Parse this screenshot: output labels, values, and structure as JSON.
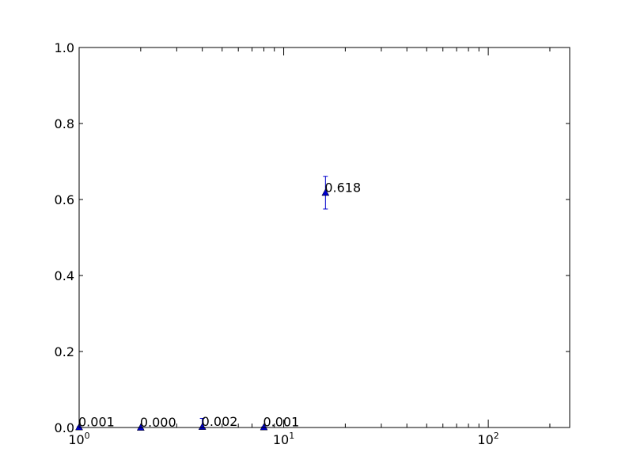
{
  "chart_data": {
    "type": "scatter",
    "title": "",
    "xlabel": "",
    "ylabel": "",
    "xscale": "log",
    "xlim": [
      1,
      250
    ],
    "ylim": [
      0,
      1.0
    ],
    "grid": false,
    "marker": "triangle-up",
    "color": "#0000cc",
    "x_ticks": [
      {
        "value": 1,
        "base": "10",
        "exp": "0"
      },
      {
        "value": 10,
        "base": "10",
        "exp": "1"
      },
      {
        "value": 100,
        "base": "10",
        "exp": "2"
      }
    ],
    "y_ticks": [
      {
        "value": 0.0,
        "label": "0.0"
      },
      {
        "value": 0.2,
        "label": "0.2"
      },
      {
        "value": 0.4,
        "label": "0.4"
      },
      {
        "value": 0.6,
        "label": "0.6"
      },
      {
        "value": 0.8,
        "label": "0.8"
      },
      {
        "value": 1.0,
        "label": "1.0"
      }
    ],
    "series": [
      {
        "points": [
          {
            "x": 1,
            "y": 0.001,
            "err": 0.001,
            "label": "0.001"
          },
          {
            "x": 2,
            "y": 0.0,
            "err": 0.0005,
            "label": "0.000"
          },
          {
            "x": 4,
            "y": 0.002,
            "err": 0.022,
            "label": "0.002"
          },
          {
            "x": 8,
            "y": 0.001,
            "err": 0.001,
            "label": "0.001"
          },
          {
            "x": 16,
            "y": 0.618,
            "err": 0.043,
            "label": "0.618"
          }
        ]
      }
    ]
  }
}
